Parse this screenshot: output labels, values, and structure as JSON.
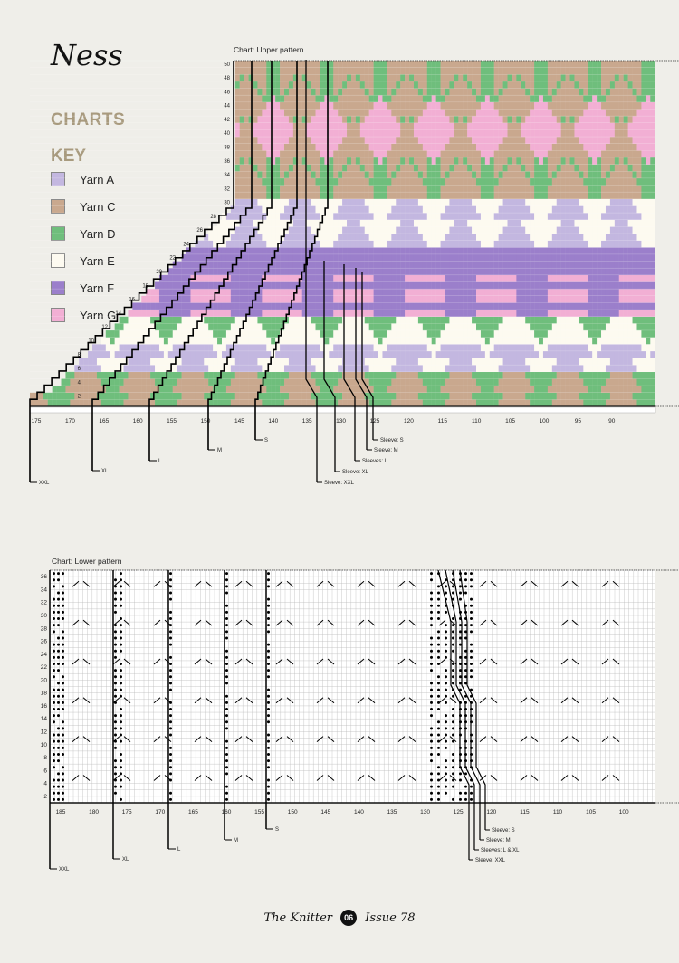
{
  "title": "Ness",
  "charts_heading": "CHARTS",
  "key_heading": "KEY",
  "key": [
    {
      "label": "Yarn A",
      "color": "#c3b7e0"
    },
    {
      "label": "Yarn C",
      "color": "#c9a88e"
    },
    {
      "label": "Yarn D",
      "color": "#6fbe7c"
    },
    {
      "label": "Yarn E",
      "color": "#fdfaf0"
    },
    {
      "label": "Yarn F",
      "color": "#9b7fcb"
    },
    {
      "label": "Yarn G",
      "color": "#f2afd4"
    }
  ],
  "upper": {
    "title": "Chart: Upper pattern",
    "row_labels": [
      "50",
      "48",
      "46",
      "44",
      "42",
      "40",
      "38",
      "36",
      "34",
      "32",
      "30",
      "28",
      "26",
      "24",
      "22",
      "20",
      "18",
      "16",
      "14",
      "12",
      "10",
      "8",
      "6",
      "4",
      "2"
    ],
    "col_labels": [
      "175",
      "170",
      "165",
      "160",
      "155",
      "150",
      "145",
      "140",
      "135",
      "130",
      "125",
      "120",
      "115",
      "110",
      "105",
      "100",
      "95",
      "90"
    ],
    "size_labels": [
      "XXL",
      "XL",
      "L",
      "M",
      "S"
    ],
    "sleeve_labels": [
      "Sleeve: S",
      "Sleeve: M",
      "Sleeves: L",
      "Sleeve: XL",
      "Sleeve: XXL"
    ]
  },
  "lower": {
    "title": "Chart: Lower pattern",
    "row_labels": [
      "36",
      "34",
      "32",
      "30",
      "28",
      "26",
      "24",
      "22",
      "20",
      "18",
      "16",
      "14",
      "12",
      "10",
      "8",
      "6",
      "4",
      "2"
    ],
    "col_labels": [
      "185",
      "180",
      "175",
      "170",
      "165",
      "160",
      "155",
      "150",
      "145",
      "140",
      "135",
      "130",
      "125",
      "120",
      "115",
      "110",
      "105",
      "100"
    ],
    "size_labels": [
      "XXL",
      "XL",
      "L",
      "M",
      "S"
    ],
    "sleeve_labels": [
      "Sleeve: S",
      "Sleeve: M",
      "Sleeves: L & XL",
      "Sleeve: XXL"
    ]
  },
  "footer": {
    "magazine": "The Knitter",
    "page": "06",
    "issue": "Issue 78"
  }
}
